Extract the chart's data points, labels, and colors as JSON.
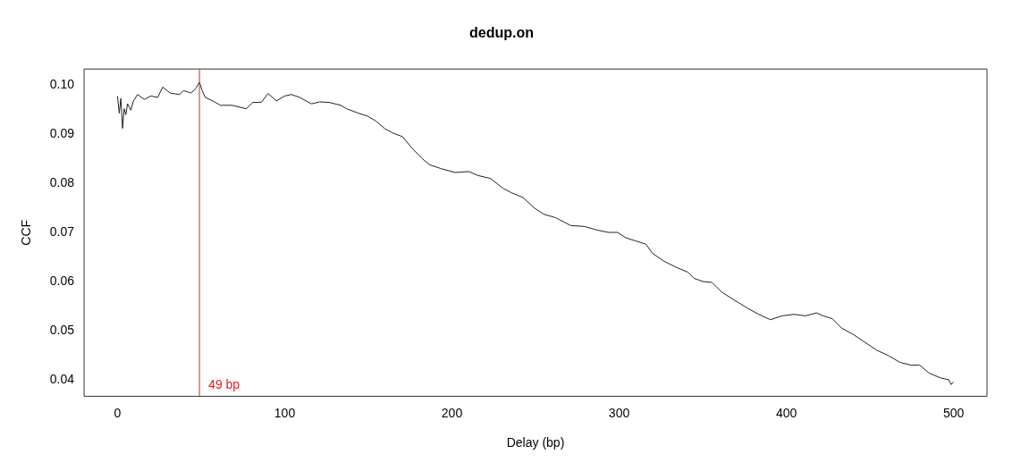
{
  "chart_data": {
    "type": "line",
    "title": "dedup.on",
    "xlabel": "Delay (bp)",
    "ylabel": "CCF",
    "xlim": [
      -20,
      520
    ],
    "xticks": [
      0,
      100,
      200,
      300,
      400,
      500
    ],
    "ylim": [
      0.0366,
      0.1033
    ],
    "yticks": [
      0.04,
      0.05,
      0.06,
      0.07,
      0.08,
      0.09,
      {
        "value": 0.1,
        "label": "0.10"
      }
    ],
    "grid": false,
    "legend": false,
    "marker": "none",
    "line_style": "solid",
    "ref_lines": [
      {
        "axis": "x",
        "value": 49,
        "label": "49 bp",
        "color": "#dd2222"
      }
    ],
    "series": [
      {
        "color": "#222222",
        "x": [
          0,
          1,
          2,
          3,
          4,
          5,
          6,
          8,
          9.5,
          12,
          16,
          20,
          24,
          27,
          31.5,
          37,
          39.5,
          44,
          47,
          49,
          50.5,
          52.5,
          57,
          61.5,
          68.5,
          77,
          81,
          86,
          90,
          95,
          100,
          104,
          109,
          116,
          121,
          126.5,
          133.5,
          137,
          144,
          149.5,
          154.5,
          160,
          165,
          170.5,
          176,
          182,
          186.5,
          193.5,
          202,
          210,
          215.5,
          223,
          230.5,
          235.5,
          242.5,
          249.5,
          255,
          262,
          271,
          279.5,
          286.5,
          293.5,
          299,
          304,
          309.5,
          316,
          320,
          327,
          334,
          341,
          345,
          350,
          355.5,
          361.5,
          367.5,
          376.5,
          383.5,
          390.5,
          397.5,
          404.5,
          411.5,
          418,
          422,
          427.5,
          433,
          440,
          447,
          454,
          461,
          468,
          475,
          479.5,
          485.5,
          492.5,
          497,
          498.5,
          500
        ],
        "values": [
          0.0977,
          0.0943,
          0.0973,
          0.0912,
          0.0952,
          0.094,
          0.0962,
          0.0949,
          0.0968,
          0.0981,
          0.0971,
          0.0978,
          0.0975,
          0.0996,
          0.0984,
          0.0981,
          0.0989,
          0.0984,
          0.0994,
          0.1006,
          0.099,
          0.0975,
          0.0968,
          0.0959,
          0.0959,
          0.0952,
          0.0965,
          0.0965,
          0.0983,
          0.0968,
          0.0978,
          0.0981,
          0.0975,
          0.0962,
          0.0966,
          0.0965,
          0.0959,
          0.0952,
          0.0943,
          0.0937,
          0.0927,
          0.0911,
          0.0902,
          0.0895,
          0.0872,
          0.0851,
          0.0838,
          0.083,
          0.0822,
          0.0824,
          0.0816,
          0.081,
          0.079,
          0.0781,
          0.0771,
          0.0749,
          0.0737,
          0.073,
          0.0714,
          0.0712,
          0.0705,
          0.07,
          0.07,
          0.0689,
          0.0683,
          0.0676,
          0.0657,
          0.0641,
          0.0629,
          0.0619,
          0.0606,
          0.06,
          0.0598,
          0.0578,
          0.0565,
          0.0546,
          0.0533,
          0.0522,
          0.053,
          0.0533,
          0.053,
          0.0536,
          0.053,
          0.0524,
          0.0505,
          0.0492,
          0.0476,
          0.046,
          0.0449,
          0.0435,
          0.0429,
          0.043,
          0.0413,
          0.0403,
          0.04,
          0.039,
          0.0395
        ]
      }
    ]
  }
}
